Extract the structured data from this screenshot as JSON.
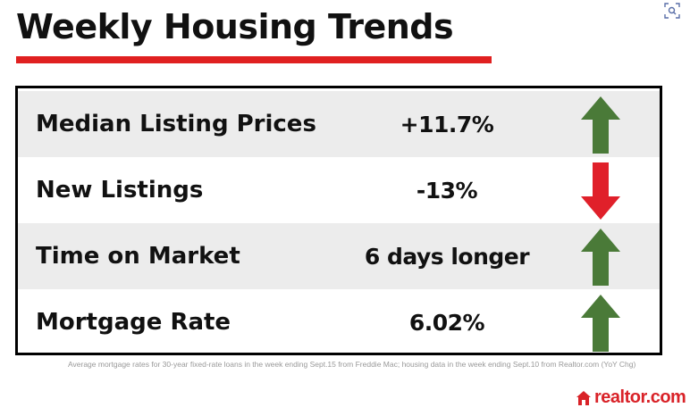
{
  "title": "Weekly Housing Trends",
  "colors": {
    "accent_red": "#e02020",
    "arrow_up": "#4a7a38",
    "arrow_down": "#e0202a",
    "row_shade": "#ececec"
  },
  "rows": [
    {
      "label": "Median Listing Prices",
      "value": "+11.7%",
      "direction": "up",
      "icon": "arrow-up-icon"
    },
    {
      "label": "New Listings",
      "value": "-13%",
      "direction": "down",
      "icon": "arrow-down-icon"
    },
    {
      "label": "Time on Market",
      "value": "6 days longer",
      "direction": "up",
      "icon": "arrow-up-icon"
    },
    {
      "label": "Mortgage Rate",
      "value": "6.02%",
      "direction": "up",
      "icon": "arrow-up-icon"
    }
  ],
  "footnote": "Average mortgage rates for 30-year fixed-rate loans in the week ending Sept.15 from Freddie Mac; housing data in the week ending Sept.10 from Realtor.com (YoY Chg)",
  "logo": {
    "text": "realtor.com",
    "icon": "house-icon"
  },
  "toolbar": {
    "icon": "visual-search-icon"
  }
}
